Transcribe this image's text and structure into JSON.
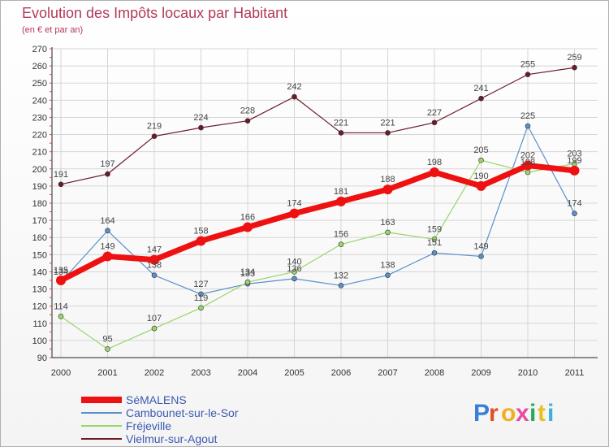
{
  "chart_data": {
    "type": "line",
    "title": "Evolution des Impôts locaux par Habitant",
    "subtitle": "(en € et par an)",
    "x": [
      "2000",
      "2001",
      "2002",
      "2003",
      "2004",
      "2005",
      "2006",
      "2007",
      "2008",
      "2009",
      "2010",
      "2011"
    ],
    "ylim": [
      90,
      270
    ],
    "yticks": [
      90,
      100,
      110,
      120,
      130,
      140,
      150,
      160,
      170,
      180,
      190,
      200,
      210,
      220,
      230,
      240,
      250,
      260,
      270
    ],
    "grid": true,
    "legend_position": "bottom-left",
    "series": [
      {
        "name": "SéMALENS",
        "color": "#ee1111",
        "width": 7,
        "values": [
          135,
          149,
          147,
          158,
          166,
          174,
          181,
          188,
          198,
          190,
          202,
          199
        ]
      },
      {
        "name": "Cambounet-sur-le-Sor",
        "color": "#5b8fc8",
        "width": 1.2,
        "values": [
          134,
          164,
          138,
          127,
          133,
          136,
          132,
          138,
          151,
          149,
          225,
          174
        ]
      },
      {
        "name": "Fréjeville",
        "color": "#9ad56b",
        "width": 1.2,
        "values": [
          114,
          95,
          107,
          119,
          134,
          140,
          156,
          163,
          159,
          205,
          198,
          203
        ]
      },
      {
        "name": "Vielmur-sur-Agout",
        "color": "#6b1a2a",
        "width": 1.2,
        "values": [
          191,
          197,
          219,
          224,
          228,
          242,
          221,
          221,
          227,
          241,
          255,
          259
        ]
      }
    ]
  },
  "logo": {
    "text": "Proxiti",
    "colors": [
      "#3a7ed8",
      "#e2502a",
      "#f0b020",
      "#e84aa0",
      "#2aa860",
      "#e8c020",
      "#3ab0e0"
    ]
  }
}
